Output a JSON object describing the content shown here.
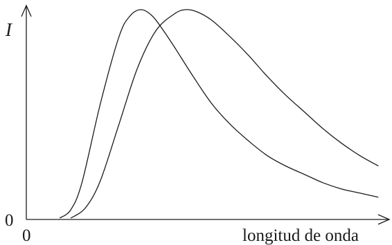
{
  "chart_data": {
    "type": "line",
    "title": "",
    "xlabel": "longitud de onda",
    "ylabel": "I",
    "x_origin_label": "0",
    "y_origin_label": "0",
    "xlim": [
      0,
      10
    ],
    "ylim": [
      0,
      1
    ],
    "grid": false,
    "legend": "none",
    "series": [
      {
        "x": [
          0.9,
          1.2,
          1.5,
          2.0,
          2.5,
          2.8,
          3.1,
          3.4,
          3.7,
          4.0,
          4.5,
          5.0,
          5.5,
          6.0,
          6.5,
          7.0,
          7.5,
          8.0,
          8.5,
          9.0,
          9.5
        ],
        "y": [
          0.0,
          0.04,
          0.17,
          0.55,
          0.87,
          0.97,
          1.0,
          0.97,
          0.9,
          0.82,
          0.68,
          0.55,
          0.45,
          0.37,
          0.3,
          0.25,
          0.21,
          0.17,
          0.14,
          0.12,
          0.1
        ]
      },
      {
        "x": [
          1.2,
          1.6,
          2.0,
          2.5,
          3.0,
          3.5,
          4.0,
          4.3,
          4.6,
          5.0,
          5.5,
          6.0,
          6.5,
          7.0,
          7.5,
          8.0,
          8.5,
          9.0,
          9.5
        ],
        "y": [
          0.0,
          0.05,
          0.18,
          0.45,
          0.72,
          0.9,
          0.98,
          1.0,
          0.99,
          0.95,
          0.87,
          0.78,
          0.68,
          0.59,
          0.51,
          0.43,
          0.36,
          0.3,
          0.25
        ]
      }
    ]
  }
}
